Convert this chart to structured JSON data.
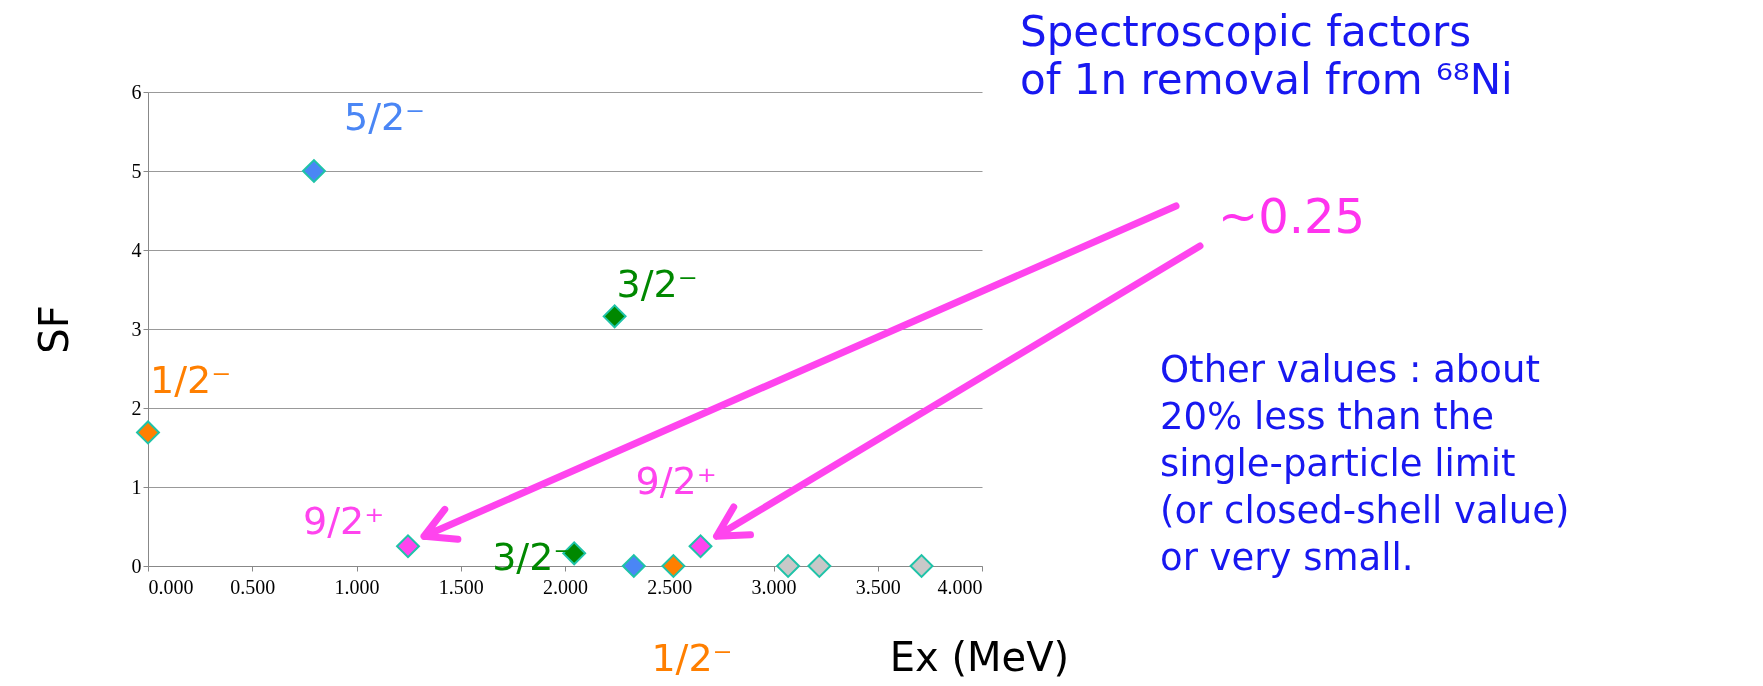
{
  "chart_data": {
    "type": "scatter",
    "title": "Spectroscopic factors\nof 1n removal from ⁶⁸Ni",
    "xlabel": "Ex (MeV)",
    "ylabel": "SF",
    "x": [
      0,
      0.796,
      1.247,
      2.044,
      2.238,
      2.33,
      2.52,
      2.65,
      3.07,
      3.22,
      3.71
    ],
    "values": [
      1.69,
      5,
      0.25,
      0.16,
      3.16,
      0,
      0,
      0.25,
      0,
      0,
      0
    ],
    "colors": [
      "#ff7f00",
      "#4a86f5",
      "#ff44ee",
      "#008800",
      "#008800",
      "#4a86f5",
      "#ff7f00",
      "#ff44ee",
      "#c8c8c8",
      "#c8c8c8",
      "#c8c8c8"
    ],
    "xlim": [
      0,
      4
    ],
    "xticks": [
      {
        "value": 0,
        "label": "0.000"
      },
      {
        "value": 0.5,
        "label": "0.500"
      },
      {
        "value": 1,
        "label": "1.000"
      },
      {
        "value": 1.5,
        "label": "1.500"
      },
      {
        "value": 2,
        "label": "2.000"
      },
      {
        "value": 2.5,
        "label": "2.500"
      },
      {
        "value": 3,
        "label": "3.000"
      },
      {
        "value": 3.5,
        "label": "3.500"
      },
      {
        "value": 4,
        "label": "4.000"
      }
    ],
    "ylim": [
      0,
      6
    ],
    "yticks": [
      0,
      1,
      2,
      3,
      4,
      5,
      6
    ],
    "grid": "y",
    "marker": "diamond",
    "annotations": [
      {
        "text": "5/2⁻",
        "x": 0.796,
        "y": 5
      },
      {
        "text": "3/2⁻",
        "x": 2.238,
        "y": 3.16
      },
      {
        "text": "1/2⁻",
        "x": 0,
        "y": 1.69
      },
      {
        "text": "9/2⁺",
        "x": 1.247,
        "y": 0.25
      },
      {
        "text": "3/2⁻",
        "x": 2.044,
        "y": 0.16
      },
      {
        "text": "9/2⁺",
        "x": 2.65,
        "y": 0.25
      },
      {
        "text": "1/2⁻",
        "x": 2.52,
        "y": 0
      },
      "~0.25",
      "Other values : about\n20% less than the\nsingle-particle limit\n(or closed-shell value)\nor very small."
    ]
  }
}
